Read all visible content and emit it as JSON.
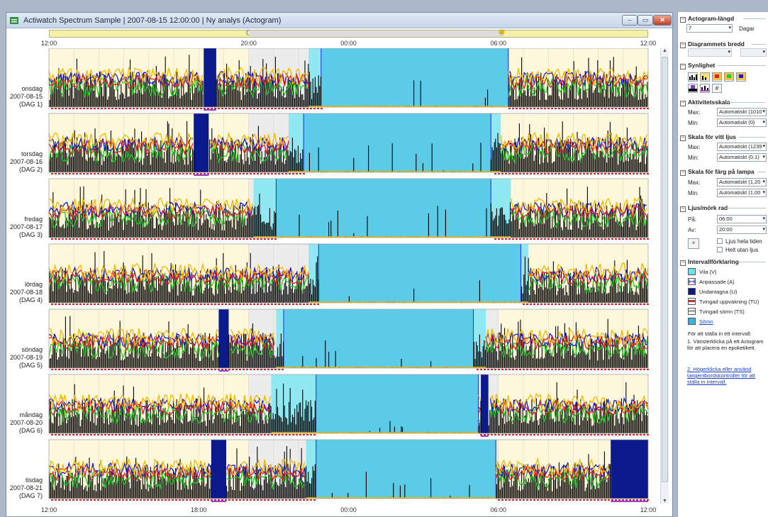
{
  "window": {
    "title": "Actiwatch Spectrum Sample | 2007-08-15 12:00:00 | Ny analys (Actogram)",
    "controls": {
      "minimize": "–",
      "maximize": "▭",
      "close": "✕"
    }
  },
  "timebar": {
    "moon_icon": "moon-icon",
    "sun_icon": "sun-icon"
  },
  "top_axis": [
    "12:00",
    "20:00",
    "00:00",
    "06:00",
    "12:00"
  ],
  "bottom_axis": [
    "12:00",
    "18:00",
    "00:00",
    "06:00",
    "12:00"
  ],
  "days": [
    {
      "weekday": "onsdag",
      "date": "2007-08-15",
      "tag": "(DAG 1)"
    },
    {
      "weekday": "torsdag",
      "date": "2007-08-16",
      "tag": "(DAG 2)"
    },
    {
      "weekday": "fredag",
      "date": "2007-08-17",
      "tag": "(DAG 3)"
    },
    {
      "weekday": "lördag",
      "date": "2007-08-18",
      "tag": "(DAG 4)"
    },
    {
      "weekday": "söndag",
      "date": "2007-08-19",
      "tag": "(DAG 5)"
    },
    {
      "weekday": "måndag",
      "date": "2007-08-20",
      "tag": "(DAG 6)"
    },
    {
      "weekday": "tisdag",
      "date": "2007-08-21",
      "tag": "(DAG 7)"
    }
  ],
  "chart_data": {
    "type": "actogram",
    "x_range_hours": [
      12,
      36
    ],
    "series_colors": {
      "activity": "#000000",
      "white_light": "#f5b800",
      "red_light": "#e02020",
      "green_light": "#22cc22",
      "blue_light": "#1a1acc"
    },
    "intervals_hours": [
      {
        "day": 1,
        "rest": [
          22.4,
          30.4
        ],
        "sleep": [
          22.9,
          30.4
        ],
        "excluded": [
          18.2,
          18.7
        ]
      },
      {
        "day": 2,
        "rest": [
          21.6,
          30.1
        ],
        "sleep": [
          22.2,
          29.7
        ],
        "excluded": [
          17.8,
          18.4
        ]
      },
      {
        "day": 3,
        "rest": [
          20.2,
          30.5
        ],
        "sleep": [
          21.1,
          29.7
        ],
        "excluded": []
      },
      {
        "day": 4,
        "rest": [
          22.4,
          31.2
        ],
        "sleep": [
          22.8,
          30.9
        ],
        "excluded": []
      },
      {
        "day": 5,
        "rest": [
          21.1,
          29.5
        ],
        "sleep": [
          21.4,
          29.0
        ],
        "excluded": [
          18.8,
          19.2
        ]
      },
      {
        "day": 6,
        "rest": [
          20.9,
          29.2
        ],
        "sleep": [
          22.7,
          29.2
        ],
        "excluded": [
          29.3,
          29.6
        ]
      },
      {
        "day": 7,
        "rest": [
          22.3,
          29.9
        ],
        "sleep": [
          22.7,
          29.9
        ],
        "excluded": [
          18.5,
          19.1
        ]
      }
    ],
    "excluded_extra": [
      {
        "day": 7,
        "range": [
          34.5,
          36.0
        ]
      }
    ]
  },
  "panel": {
    "actogram_length": {
      "header": "Actogram-längd",
      "value": "7",
      "unit": "Dagar"
    },
    "chart_width": {
      "header": "Diagrammets bredd"
    },
    "visibility": {
      "header": "Synlighet"
    },
    "activity_scale": {
      "header": "Aktivitetsskala",
      "max_label": "Max:",
      "max_value": "Automatiskt (1010",
      "min_label": "Min:",
      "min_value": "Automatiskt (0)"
    },
    "white_light_scale": {
      "header": "Skala för vitt ljus",
      "max_label": "Max:",
      "max_value": "Automatiskt (1239",
      "min_label": "Min:",
      "min_value": "Automatiskt (0,1)"
    },
    "lamp_color_scale": {
      "header": "Skala för färg på lampa",
      "max_label": "Max:",
      "max_value": "Automatiskt (1,20",
      "min_label": "Min:",
      "min_value": "Automatiskt (1,00"
    },
    "light_dark": {
      "header": "Ljus/mörk rad",
      "on_label": "På:",
      "on_value": "06:00",
      "off_label": "Av:",
      "off_value": "20:00",
      "always_light": "Ljus hela tiden",
      "no_light": "Helt utan ljus"
    },
    "legend": {
      "header": "Intervallförklaring",
      "items": [
        {
          "label": "Vila (V)",
          "color": "#66e6ef"
        },
        {
          "label": "Anpassade (A)",
          "color": "#ffffff"
        },
        {
          "label": "Undantagna (U)",
          "color": "#0a1a8c"
        },
        {
          "label": "Tvingad uppvakning (TU)",
          "color": "#d23030"
        },
        {
          "label": "Tvingad sömn (TS)",
          "color": "#ffffff"
        },
        {
          "label": "Sömn",
          "color": "#32b4e6"
        }
      ]
    },
    "instructions": {
      "intro": "För att ställa in ett intervall:",
      "step1": "1.  Vänsterklicka på ett Actogram för att placera en epoketikett.",
      "step2": "2.  Högerklicka eller använd tangentbordskontroller för att ställa in intervall."
    }
  }
}
